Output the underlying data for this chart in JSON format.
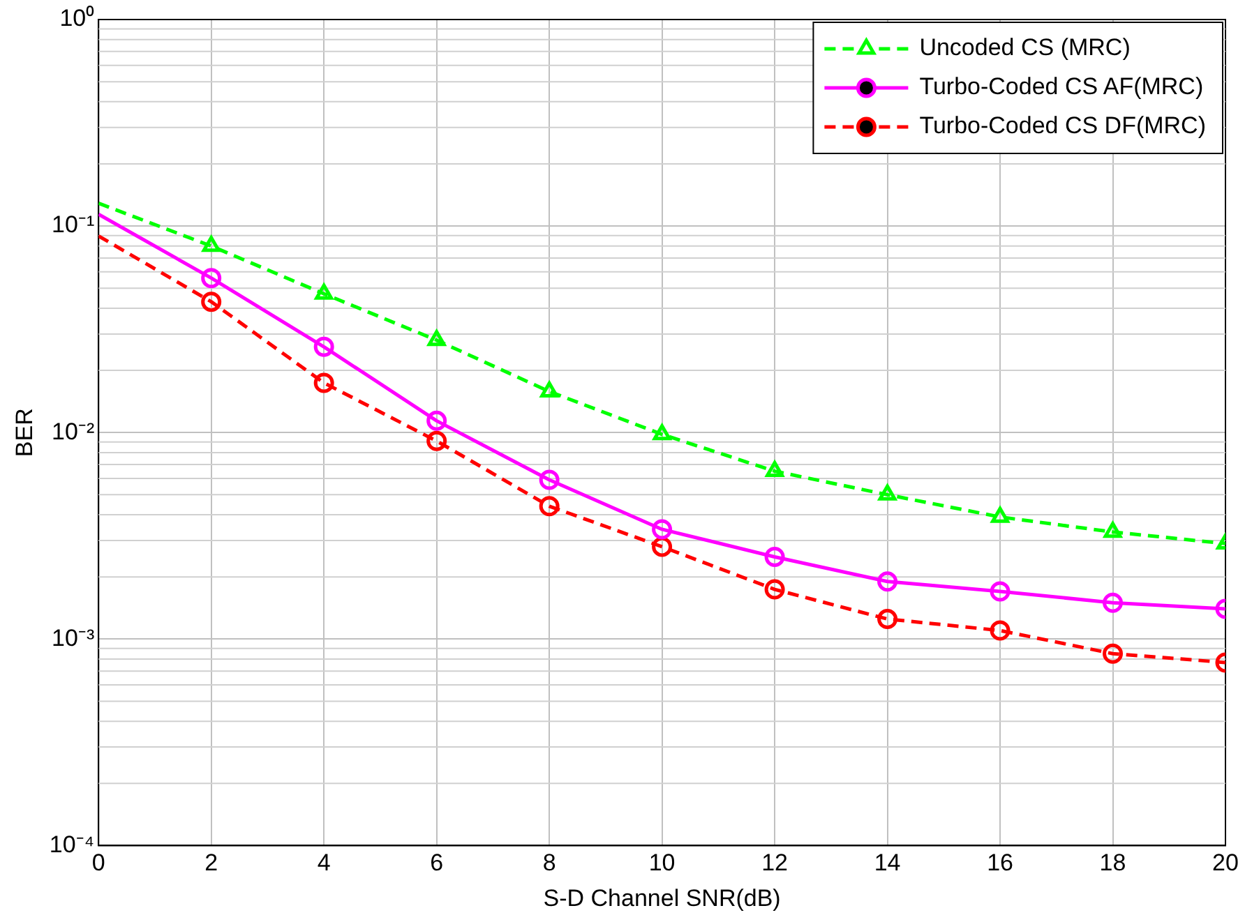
{
  "chart_data": {
    "type": "line",
    "xlabel": "S-D Channel SNR(dB)",
    "ylabel": "BER",
    "x": [
      0,
      2,
      4,
      6,
      8,
      10,
      12,
      14,
      16,
      18,
      20
    ],
    "series": [
      {
        "name": "Uncoded CS (MRC)",
        "color": "#00ff00",
        "line_style": "dashed",
        "marker": "triangle",
        "values": [
          0.129,
          0.08,
          0.047,
          0.028,
          0.0158,
          0.0098,
          0.0065,
          0.005,
          0.0039,
          0.0033,
          0.0029
        ]
      },
      {
        "name": "Turbo-Coded CS AF(MRC)",
        "color": "#ff00ff",
        "line_style": "solid",
        "marker": "circle",
        "values": [
          0.114,
          0.056,
          0.026,
          0.0114,
          0.0059,
          0.0034,
          0.0025,
          0.0019,
          0.0017,
          0.0015,
          0.0014
        ]
      },
      {
        "name": "Turbo-Coded CS DF(MRC)",
        "color": "#ff0000",
        "line_style": "dashed",
        "marker": "circle",
        "values": [
          0.0895,
          0.043,
          0.0174,
          0.0091,
          0.0044,
          0.0028,
          0.00174,
          0.00125,
          0.0011,
          0.00085,
          0.00077
        ]
      }
    ],
    "log": "y",
    "xlim": [
      0,
      20
    ],
    "xticks": [
      0,
      2,
      4,
      6,
      8,
      10,
      12,
      14,
      16,
      18,
      20
    ],
    "ylim": [
      0.0001,
      1
    ],
    "yticks": [
      {
        "value": 0.0001,
        "label": "10⁻⁴"
      },
      {
        "value": 0.001,
        "label": "10⁻³"
      },
      {
        "value": 0.01,
        "label": "10⁻²"
      },
      {
        "value": 0.1,
        "label": "10⁻¹"
      },
      {
        "value": 1,
        "label": "10⁰"
      }
    ],
    "grid": true,
    "legend": "top right"
  }
}
